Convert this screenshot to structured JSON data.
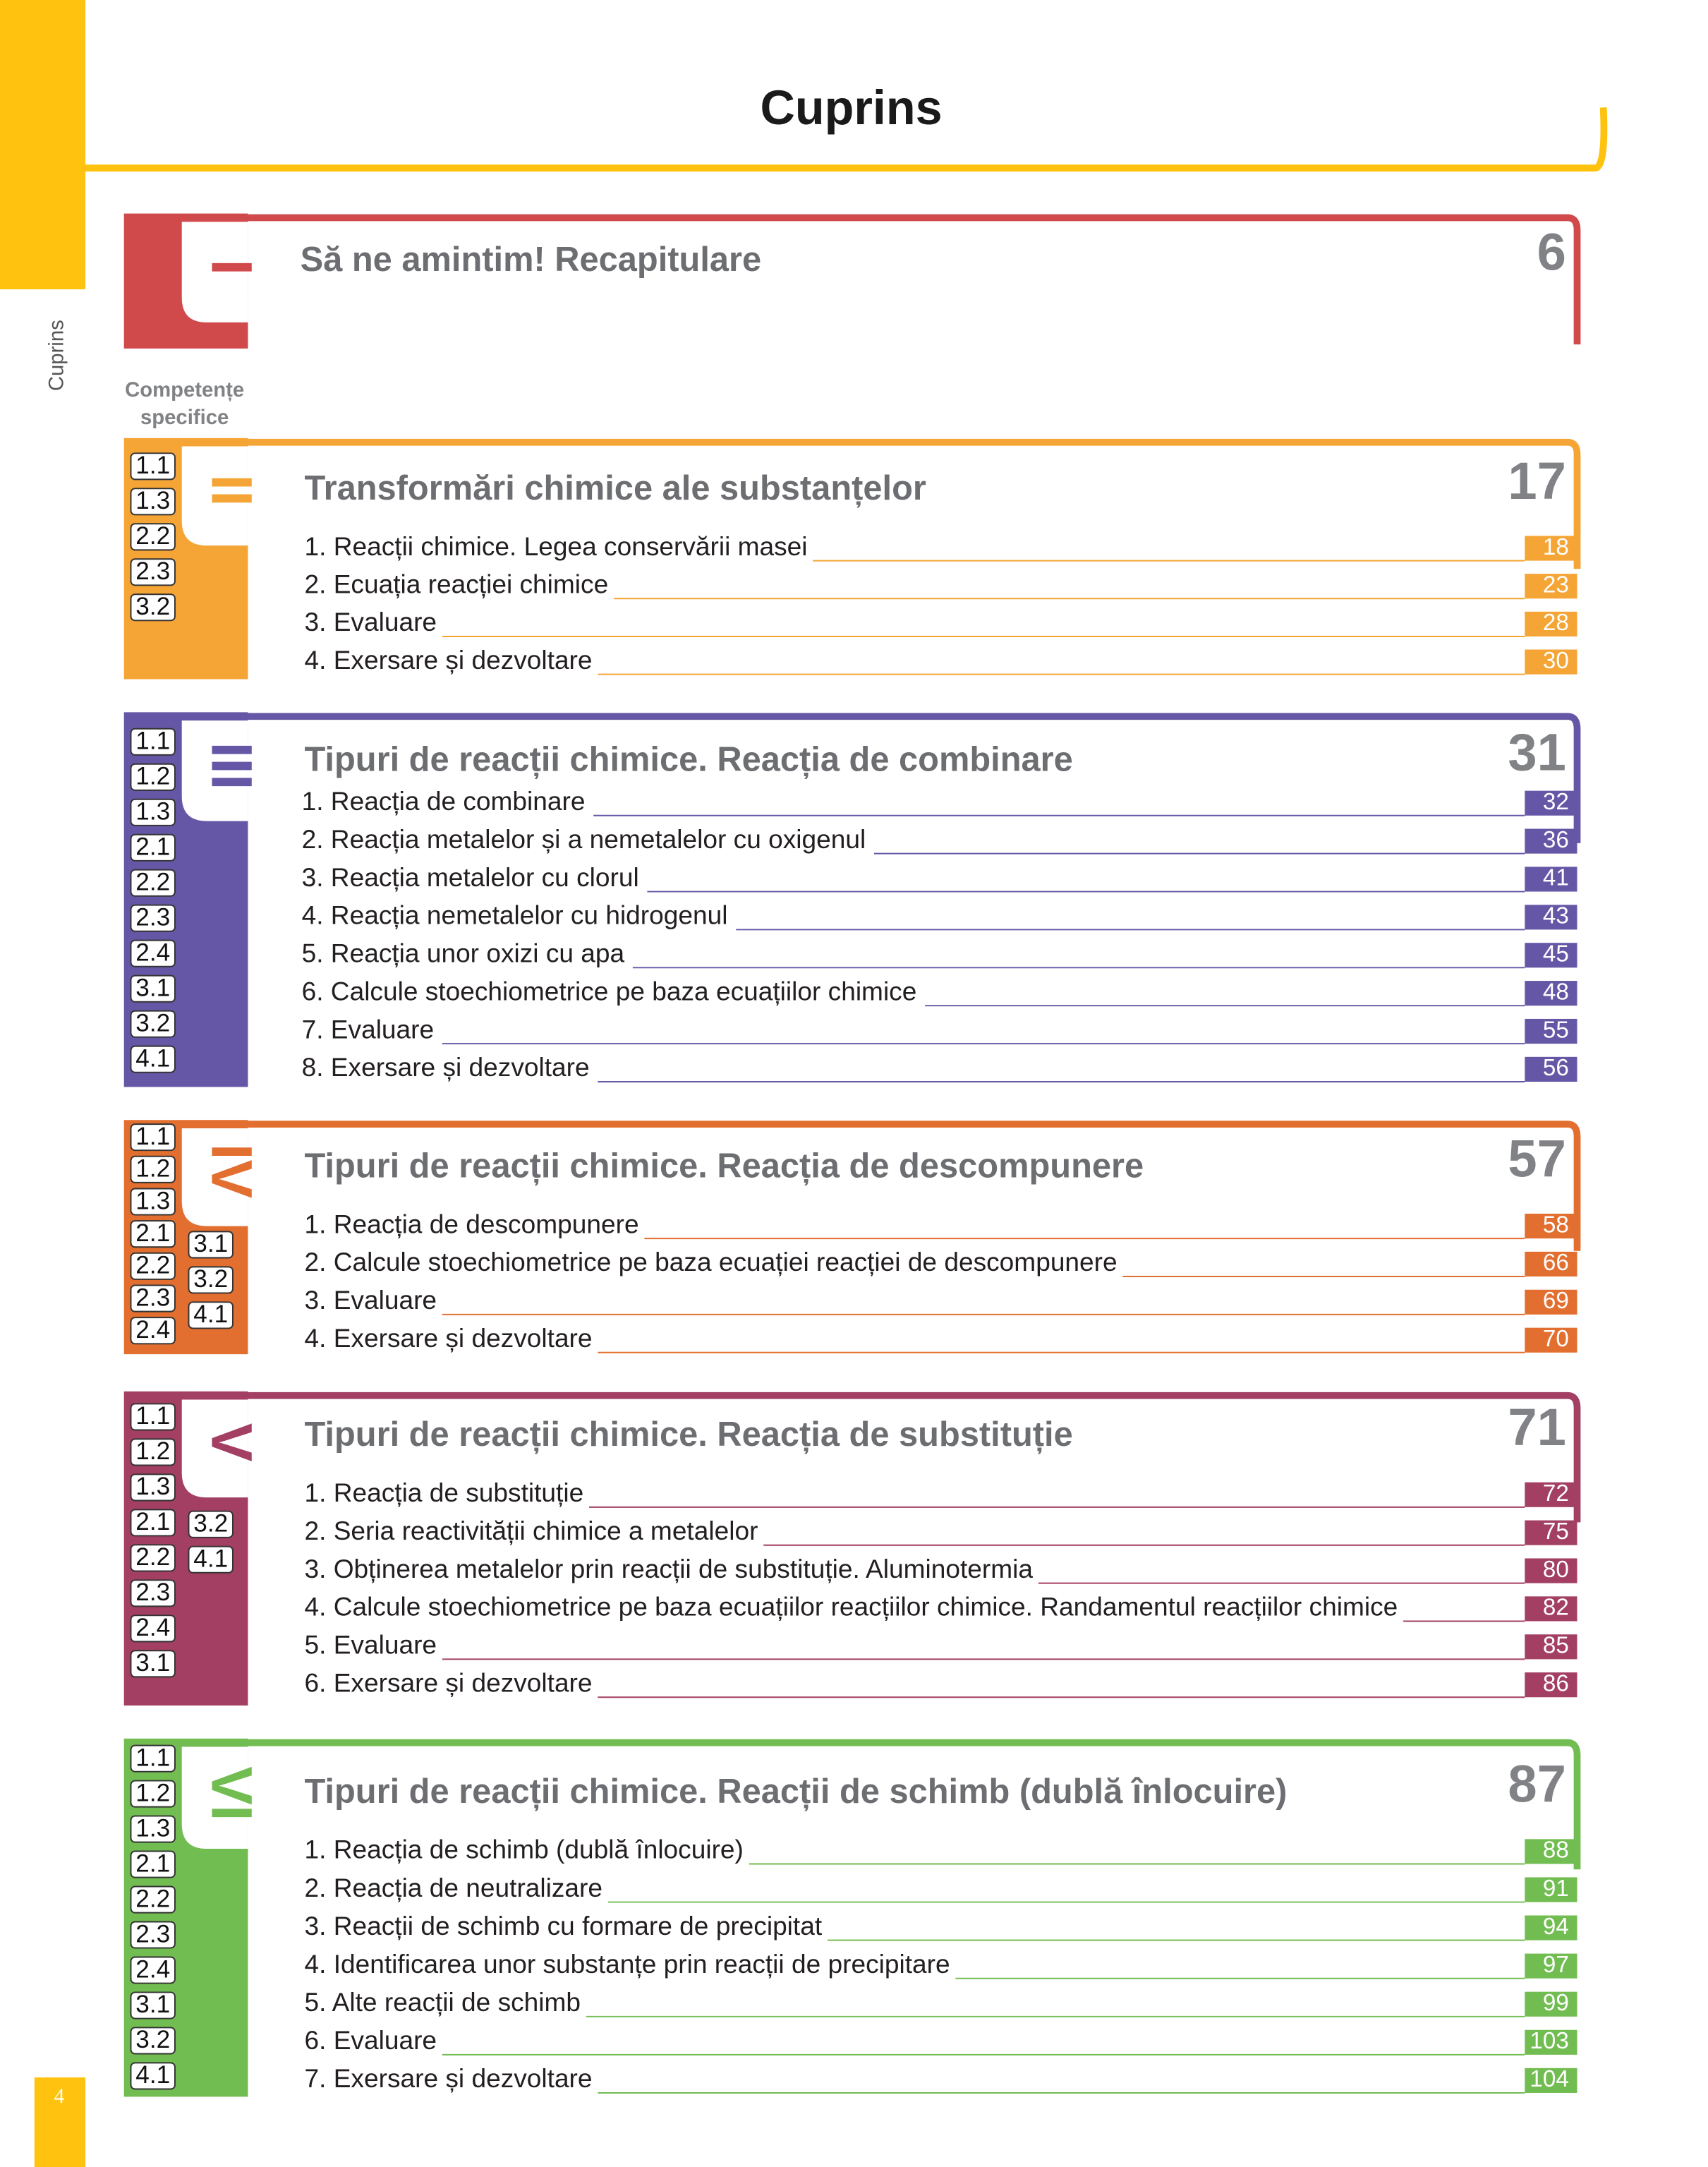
{
  "header": {
    "title": "Cuprins",
    "side_label": "Cuprins",
    "page_number": "4"
  },
  "competences_label": [
    "Competențe",
    "specifice"
  ],
  "units": [
    {
      "numeral": "I",
      "title": "Să ne amintim! Recapitulare",
      "page": "6",
      "competences": [],
      "lessons": []
    },
    {
      "numeral": "II",
      "title": "Transformări chimice ale substanțelor",
      "page": "17",
      "competences": [
        [
          "1.1",
          "1.3",
          "2.2",
          "2.3",
          "3.2"
        ]
      ],
      "lessons": [
        {
          "title": "1. Reacții chimice. Legea conservării masei",
          "page": "18"
        },
        {
          "title": "2. Ecuația reacției chimice",
          "page": "23"
        },
        {
          "title": "3. Evaluare",
          "page": "28"
        },
        {
          "title": "4. Exersare și dezvoltare",
          "page": "30"
        }
      ]
    },
    {
      "numeral": "III",
      "title": "Tipuri de reacții chimice. Reacția de combinare",
      "page": "31",
      "competences": [
        [
          "1.1",
          "1.2",
          "1.3",
          "2.1",
          "2.2",
          "2.3",
          "2.4",
          "3.1",
          "3.2",
          "4.1"
        ]
      ],
      "lessons": [
        {
          "title": "1. Reacția de combinare",
          "page": "32"
        },
        {
          "title": "2. Reacția metalelor și a nemetalelor cu oxigenul",
          "page": "36"
        },
        {
          "title": "3. Reacția metalelor cu clorul",
          "page": "41"
        },
        {
          "title": "4. Reacția nemetalelor cu hidrogenul",
          "page": "43"
        },
        {
          "title": "5. Reacția unor oxizi cu apa",
          "page": "45"
        },
        {
          "title": "6. Calcule stoechiometrice pe baza ecuațiilor chimice",
          "page": "48"
        },
        {
          "title": "7. Evaluare",
          "page": "55"
        },
        {
          "title": "8. Exersare și dezvoltare",
          "page": "56"
        }
      ]
    },
    {
      "numeral": "IV",
      "title": "Tipuri de reacții chimice. Reacția de descompunere",
      "page": "57",
      "competences": [
        [
          "1.1",
          "1.2",
          "1.3",
          "2.1",
          "2.2",
          "2.3",
          "2.4"
        ],
        [
          "3.1",
          "3.2",
          "4.1"
        ]
      ],
      "lessons": [
        {
          "title": "1. Reacția de descompunere",
          "page": "58"
        },
        {
          "title": "2. Calcule stoechiometrice pe baza ecuației reacției de descompunere",
          "page": "66"
        },
        {
          "title": "3. Evaluare",
          "page": "69"
        },
        {
          "title": "4. Exersare și dezvoltare",
          "page": "70"
        }
      ]
    },
    {
      "numeral": "V",
      "title": "Tipuri de reacții chimice. Reacția de substituție",
      "page": "71",
      "competences": [
        [
          "1.1",
          "1.2",
          "1.3",
          "2.1",
          "2.2",
          "2.3",
          "2.4",
          "3.1"
        ],
        [
          "3.2",
          "4.1"
        ]
      ],
      "lessons": [
        {
          "title": "1. Reacția de substituție",
          "page": "72"
        },
        {
          "title": "2. Seria reactivității chimice a metalelor",
          "page": "75"
        },
        {
          "title": "3. Obținerea metalelor prin reacții de substituție. Aluminotermia",
          "page": "80"
        },
        {
          "title": "4. Calcule stoechiometrice pe baza ecuațiilor reacțiilor chimice. Randamentul reacțiilor chimice",
          "page": "82"
        },
        {
          "title": "5. Evaluare",
          "page": "85"
        },
        {
          "title": "6. Exersare și dezvoltare",
          "page": "86"
        }
      ]
    },
    {
      "numeral": "VI",
      "title": "Tipuri de reacții chimice. Reacții de schimb (dublă înlocuire)",
      "page": "87",
      "competences": [
        [
          "1.1",
          "1.2",
          "1.3",
          "2.1",
          "2.2",
          "2.3",
          "2.4",
          "3.1",
          "3.2",
          "4.1"
        ]
      ],
      "lessons": [
        {
          "title": "1. Reacția de schimb (dublă înlocuire)",
          "page": "88"
        },
        {
          "title": "2. Reacția de neutralizare",
          "page": "91"
        },
        {
          "title": "3. Reacții de schimb cu formare de precipitat",
          "page": "94"
        },
        {
          "title": "4. Identificarea unor substanțe prin reacții de precipitare",
          "page": "97"
        },
        {
          "title": "5. Alte reacții de schimb",
          "page": "99"
        },
        {
          "title": "6. Evaluare",
          "page": "103"
        },
        {
          "title": "7. Exersare și dezvoltare",
          "page": "104"
        }
      ]
    }
  ]
}
